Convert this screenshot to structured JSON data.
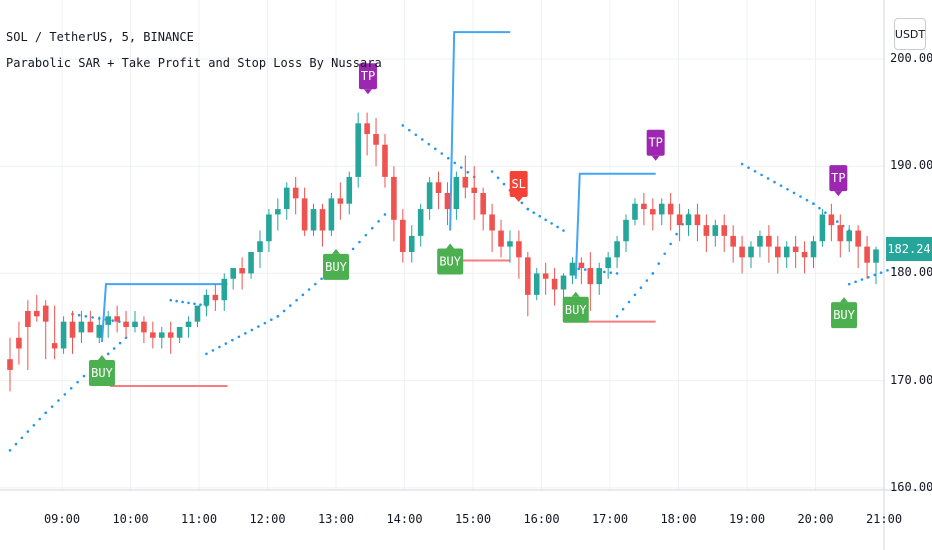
{
  "symbol_line": "SOL / TetherUS, 5, BINANCE",
  "indicator_line": "Parabolic SAR + Take Profit and Stop Loss By Nussara",
  "currency_button": "USDT",
  "current_price": "182.24",
  "colors": {
    "up": "#26a69a",
    "down": "#ef5350",
    "sar": "#2196f3",
    "take_profit_line": "#42a5f5",
    "stop_loss_line": "#f77c80",
    "buy_label": "#4caf50",
    "tp_label": "#9c27b0",
    "sl_label": "#f44336",
    "grid": "#eef0f3"
  },
  "chart_data": {
    "type": "candlestick",
    "y_axis": {
      "ticks": [
        160,
        170,
        180,
        190,
        200
      ],
      "tick_labels": [
        "160.00",
        "170.00",
        "180.00",
        "190.00",
        "200.00"
      ],
      "range": [
        159.8,
        205.5
      ]
    },
    "x_axis": {
      "tick_labels": [
        "09:00",
        "10:00",
        "11:00",
        "12:00",
        "13:00",
        "14:00",
        "15:00",
        "16:00",
        "17:00",
        "18:00",
        "19:00",
        "20:00",
        "21:00"
      ]
    },
    "signals": [
      {
        "label": "BUY",
        "time": "09:35",
        "entry": 173.6,
        "take_profit": 179.0,
        "stop_loss": 169.5,
        "tp_hit_time": "11:25"
      },
      {
        "label": "BUY",
        "time": "13:00",
        "entry": 183.5
      },
      {
        "label": "BUY",
        "time": "14:40",
        "entry": 184.0,
        "take_profit": 202.5,
        "stop_loss": 181.2
      },
      {
        "label": "SL",
        "time": "15:40",
        "price": 187.5
      },
      {
        "label": "BUY",
        "time": "16:30",
        "entry": 179.5,
        "take_profit": 189.3,
        "stop_loss": 175.5,
        "tp_hit_time": "17:40"
      },
      {
        "label": "TP",
        "time": "13:28",
        "price": 195.5
      },
      {
        "label": "TP",
        "time": "17:40",
        "price": 189.3
      },
      {
        "label": "TP",
        "time": "20:20",
        "price": 186.0
      },
      {
        "label": "BUY",
        "time": "20:25",
        "entry": 179.0
      }
    ],
    "candles": [
      [
        172,
        174,
        171,
        169
      ],
      [
        174,
        175.5,
        173,
        171.5
      ],
      [
        176.5,
        177.5,
        175,
        171
      ],
      [
        176.5,
        178,
        176,
        175.5
      ],
      [
        177,
        177.5,
        175.5,
        172
      ],
      [
        173.5,
        177,
        173,
        172
      ],
      [
        173,
        176,
        175.5,
        172.5
      ],
      [
        175.5,
        176.5,
        174,
        172.5
      ],
      [
        174.5,
        176.5,
        175.5,
        173.5
      ],
      [
        175.5,
        176.5,
        174.5,
        174.5
      ],
      [
        174,
        176,
        175.2,
        173.5
      ],
      [
        175.2,
        176.5,
        176,
        174
      ],
      [
        176,
        177,
        175.5,
        174.5
      ],
      [
        175.5,
        176.5,
        175,
        174
      ],
      [
        175,
        176.5,
        175.5,
        174.5
      ],
      [
        175.5,
        176,
        174.5,
        173.5
      ],
      [
        174.5,
        175.5,
        174,
        173
      ],
      [
        174,
        175,
        174.5,
        173
      ],
      [
        174.5,
        175.5,
        174,
        172.5
      ],
      [
        174,
        175,
        175,
        173.5
      ],
      [
        175,
        176,
        175.5,
        174
      ],
      [
        175.5,
        176.5,
        177,
        175
      ],
      [
        177,
        178.5,
        178,
        176
      ],
      [
        178,
        179,
        177.5,
        176.5
      ],
      [
        177.5,
        180,
        179.5,
        176.5
      ],
      [
        179.5,
        180.5,
        180.5,
        178.5
      ],
      [
        180.5,
        181.5,
        180,
        178.5
      ],
      [
        180,
        182,
        182,
        179.5
      ],
      [
        182,
        184,
        183,
        180.5
      ],
      [
        183,
        186,
        185.5,
        182
      ],
      [
        185.5,
        187,
        186,
        184
      ],
      [
        186,
        188.5,
        188,
        185
      ],
      [
        188,
        189,
        187,
        185.5
      ],
      [
        187,
        188,
        184,
        183.5
      ],
      [
        184,
        186.5,
        186,
        183.5
      ],
      [
        186,
        186.5,
        184,
        182.5
      ],
      [
        184,
        187.5,
        187,
        183.5
      ],
      [
        187,
        188.5,
        186.5,
        185
      ],
      [
        186.5,
        189.5,
        189,
        185.5
      ],
      [
        189,
        195,
        194,
        188
      ],
      [
        194,
        195,
        193,
        191
      ],
      [
        193,
        194.5,
        192,
        190
      ],
      [
        192,
        193,
        189,
        188
      ],
      [
        189,
        190,
        185,
        183
      ],
      [
        185,
        186,
        182,
        181
      ],
      [
        182,
        184.5,
        183.5,
        181
      ],
      [
        183.5,
        186.5,
        186,
        182.5
      ],
      [
        186,
        189,
        188.5,
        185
      ],
      [
        188.5,
        189.5,
        187.5,
        186
      ],
      [
        187.5,
        188.5,
        186,
        184.5
      ],
      [
        186,
        189.5,
        189,
        185
      ],
      [
        189,
        191,
        188,
        187
      ],
      [
        188,
        190,
        187.5,
        185
      ],
      [
        187.5,
        188,
        185.5,
        184
      ],
      [
        185.5,
        186.5,
        184,
        182
      ],
      [
        184,
        185,
        182.5,
        181.5
      ],
      [
        182.5,
        184,
        183,
        181
      ],
      [
        183,
        184,
        181.5,
        179.5
      ],
      [
        181.5,
        182,
        178,
        176
      ],
      [
        178,
        180.5,
        180,
        177.5
      ],
      [
        180,
        181,
        179.5,
        178
      ],
      [
        179.5,
        180.5,
        178.5,
        177
      ],
      [
        178.5,
        180,
        179.8,
        177.5
      ],
      [
        179.8,
        181.5,
        181,
        179
      ],
      [
        181,
        181.5,
        180.5,
        179
      ],
      [
        180.5,
        182,
        179,
        176.5
      ],
      [
        179,
        181,
        180.5,
        178
      ],
      [
        180.5,
        182,
        181.5,
        179.5
      ],
      [
        181.5,
        183.5,
        183,
        180.5
      ],
      [
        183,
        185.5,
        185,
        182
      ],
      [
        185,
        187,
        186.5,
        184.5
      ],
      [
        186.5,
        187.5,
        186,
        184.5
      ],
      [
        186,
        187,
        185.5,
        184
      ],
      [
        185.5,
        187,
        186.5,
        184.5
      ],
      [
        186.5,
        187.5,
        185.5,
        184
      ],
      [
        185.5,
        186.5,
        184.5,
        183
      ],
      [
        184.5,
        186,
        185.5,
        183.5
      ],
      [
        185.5,
        186.5,
        184.5,
        183
      ],
      [
        184.5,
        185.5,
        183.5,
        182
      ],
      [
        183.5,
        185,
        184.5,
        182.5
      ],
      [
        184.5,
        185.5,
        183.5,
        182
      ],
      [
        183.5,
        184.5,
        182.5,
        181
      ],
      [
        182.5,
        183.5,
        181.5,
        180
      ],
      [
        181.5,
        183,
        182.5,
        180.5
      ],
      [
        182.5,
        184,
        183.5,
        181.5
      ],
      [
        183.5,
        184.5,
        182.5,
        181
      ],
      [
        182.5,
        183.5,
        181.5,
        180
      ],
      [
        181.5,
        183,
        182.5,
        180.5
      ],
      [
        182.5,
        183.5,
        182,
        180.5
      ],
      [
        182,
        183,
        181.5,
        180
      ],
      [
        181.5,
        183.5,
        183,
        180.5
      ],
      [
        183,
        186,
        185.5,
        182.5
      ],
      [
        185.5,
        186.5,
        184.5,
        183
      ],
      [
        184.5,
        185.5,
        183,
        181.5
      ],
      [
        183,
        184.5,
        184,
        182
      ],
      [
        184,
        184.5,
        182.5,
        180.5
      ],
      [
        182.5,
        183.5,
        181,
        179.5
      ],
      [
        181,
        182.5,
        182.24,
        179
      ]
    ]
  }
}
